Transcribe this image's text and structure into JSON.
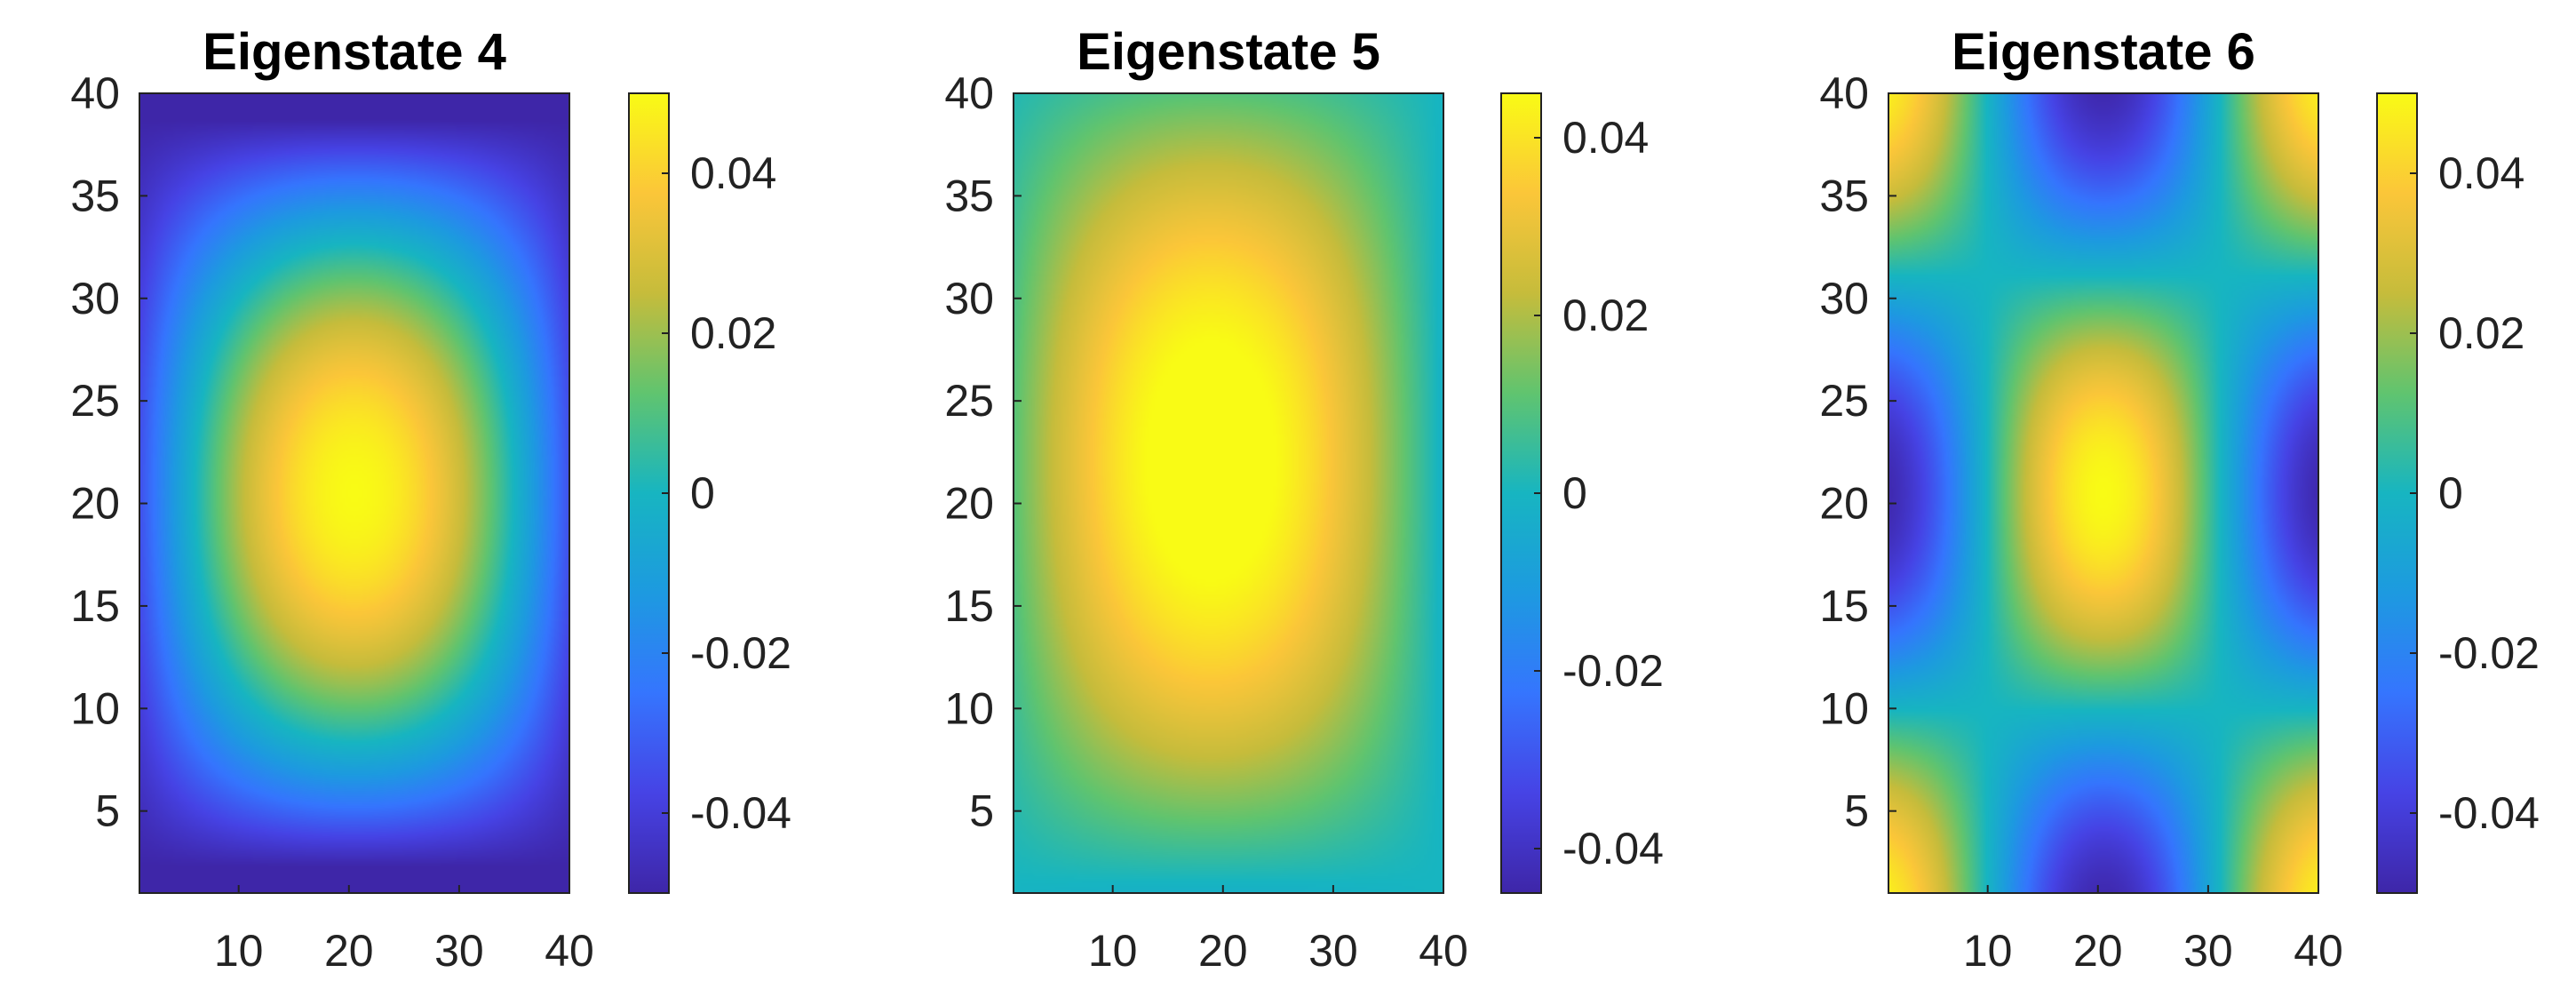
{
  "chart_data": [
    {
      "type": "heatmap",
      "title": "Eigenstate 4",
      "xlabel": "",
      "ylabel": "",
      "xlim": [
        1,
        40
      ],
      "ylim": [
        1,
        40
      ],
      "xticks": [
        10,
        20,
        30,
        40
      ],
      "yticks": [
        5,
        10,
        15,
        20,
        25,
        30,
        35,
        40
      ],
      "field": {
        "mode": "sin",
        "mx": 1,
        "my": 1,
        "ax": 0.9,
        "ay": 1.07,
        "bx": 0.0,
        "by": 0.0,
        "amp": 0.05,
        "offset": -0.05
      },
      "colorbar": {
        "range": [
          -0.05,
          0.05
        ],
        "ticks": [
          -0.04,
          -0.02,
          0,
          0.02,
          0.04
        ]
      }
    },
    {
      "type": "heatmap",
      "title": "Eigenstate 5",
      "xlabel": "",
      "ylabel": "",
      "xlim": [
        1,
        40
      ],
      "ylim": [
        1,
        40
      ],
      "xticks": [
        10,
        20,
        30,
        40
      ],
      "yticks": [
        5,
        10,
        15,
        20,
        25,
        30,
        35,
        40
      ],
      "field": {
        "mode": "cos",
        "mx": 1,
        "my": 1,
        "ax": 0.95,
        "ay": 0.95,
        "bx": 0.12,
        "by": -0.12,
        "amp": 0.05,
        "offset": 0.0
      },
      "colorbar": {
        "range": [
          -0.045,
          0.045
        ],
        "ticks": [
          -0.04,
          -0.02,
          0,
          0.02,
          0.04
        ]
      }
    },
    {
      "type": "heatmap",
      "title": "Eigenstate 6",
      "xlabel": "",
      "ylabel": "",
      "xlim": [
        1,
        40
      ],
      "ylim": [
        1,
        40
      ],
      "xticks": [
        10,
        20,
        30,
        40
      ],
      "yticks": [
        5,
        10,
        15,
        20,
        25,
        30,
        35,
        40
      ],
      "field": {
        "mode": "cos",
        "mx": 2,
        "my": 2,
        "ax": 0.92,
        "ay": 0.92,
        "bx": 0.0,
        "by": 0.0,
        "amp": 0.05,
        "offset": 0.0
      },
      "colorbar": {
        "range": [
          -0.05,
          0.05
        ],
        "ticks": [
          -0.04,
          -0.02,
          0,
          0.02,
          0.04
        ]
      }
    }
  ]
}
